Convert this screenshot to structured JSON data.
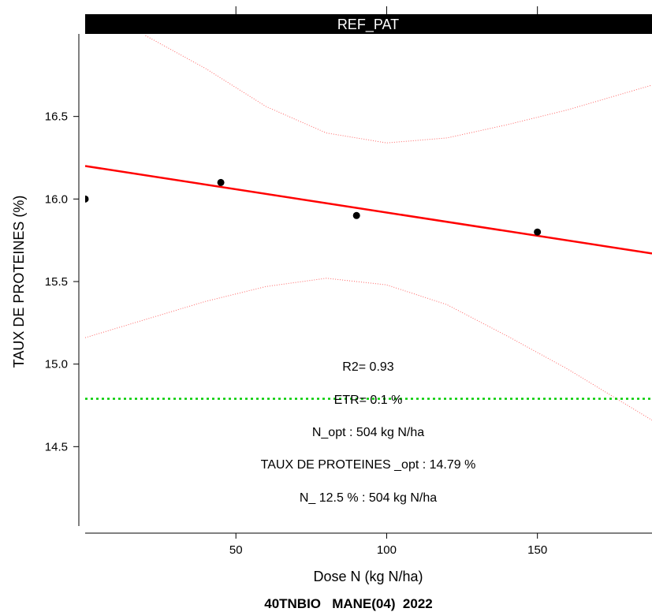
{
  "chart_data": {
    "type": "scatter",
    "panel_title": "REF_PAT",
    "xlabel": "Dose N (kg N/ha)",
    "ylabel": "TAUX DE PROTEINES (%)",
    "footer": "40TNBIO   MANE(04)  2022",
    "xlim": [
      0,
      188
    ],
    "ylim": [
      14.0,
      17.0
    ],
    "x_ticks": [
      50,
      100,
      150
    ],
    "x_tick_labels": [
      "50",
      "100",
      "150"
    ],
    "y_ticks": [
      14.5,
      15.0,
      15.5,
      16.0,
      16.5
    ],
    "y_tick_labels": [
      "14.5",
      "15.0",
      "15.5",
      "16.0",
      "16.5"
    ],
    "grid": false,
    "points": {
      "x": [
        0,
        45,
        90,
        150
      ],
      "y": [
        16.0,
        16.1,
        15.9,
        15.8
      ]
    },
    "fit_line": {
      "x": [
        0,
        188
      ],
      "y": [
        16.2,
        15.67
      ],
      "color": "#ff0000"
    },
    "confidence_band": {
      "color": "#ff6666",
      "upper": {
        "x": [
          20,
          40,
          60,
          80,
          100,
          120,
          140,
          160,
          188
        ],
        "y": [
          16.99,
          16.79,
          16.56,
          16.4,
          16.34,
          16.37,
          16.45,
          16.54,
          16.69
        ]
      },
      "lower": {
        "x": [
          0,
          20,
          40,
          60,
          80,
          100,
          120,
          140,
          160,
          188
        ],
        "y": [
          15.16,
          15.27,
          15.38,
          15.47,
          15.52,
          15.48,
          15.36,
          15.17,
          14.97,
          14.66
        ]
      }
    },
    "reference_line": {
      "y": 14.79,
      "color": "#00cc00"
    },
    "annotations": [
      "R2= 0.93",
      "ETR= 0.1 %",
      "N_opt  :  504 kg N/ha",
      "TAUX DE PROTEINES _opt :  14.79 %",
      "N_ 12.5 %  :  504 kg N/ha"
    ]
  }
}
